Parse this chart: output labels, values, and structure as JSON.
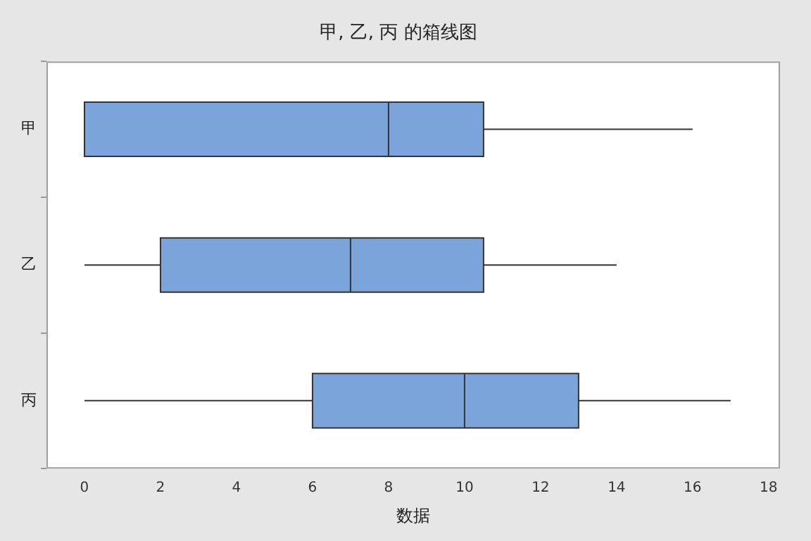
{
  "chart_data": {
    "type": "box",
    "title": "甲, 乙, 丙 的箱线图",
    "xlabel": "数据",
    "orientation": "horizontal",
    "categories": [
      "甲",
      "乙",
      "丙"
    ],
    "boxes": [
      {
        "low": 0,
        "q1": 0,
        "median": 8,
        "q3": 10.5,
        "high": 16
      },
      {
        "low": 0,
        "q1": 2,
        "median": 7,
        "q3": 10.5,
        "high": 14
      },
      {
        "low": 0,
        "q1": 6,
        "median": 10,
        "q3": 13,
        "high": 17
      }
    ],
    "color": "#7ba4db",
    "xlim": [
      -1,
      18.3
    ],
    "xticks": [
      0,
      2,
      4,
      6,
      8,
      10,
      12,
      14,
      16,
      18
    ],
    "grid": false,
    "legend": false
  }
}
